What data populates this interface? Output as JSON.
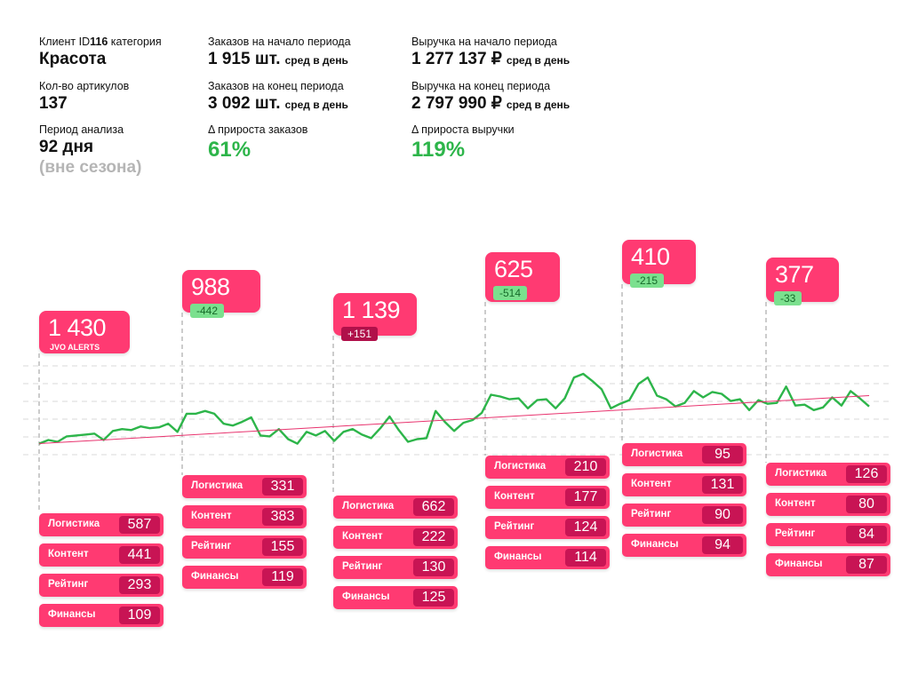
{
  "header": {
    "client": {
      "label_prefix": "Клиент ID",
      "id": "116",
      "label_suffix": " категория",
      "value": "Красота"
    },
    "articles": {
      "label": "Кол-во артикулов",
      "value": "137"
    },
    "period": {
      "label": "Период анализа",
      "value": "92 дня",
      "note": "(вне сезона)"
    },
    "orders_start": {
      "label": "Заказов на начало периода",
      "value": "1 915 шт.",
      "suffix": "сред в день"
    },
    "orders_end": {
      "label": "Заказов на конец периода",
      "value": "3 092 шт.",
      "suffix": "сред в день"
    },
    "orders_growth": {
      "label": "Δ прироста заказов",
      "value": "61%"
    },
    "revenue_start": {
      "label": "Выручка на начало периода",
      "value": "1 277 137 ₽",
      "suffix": "сред в день"
    },
    "revenue_end": {
      "label": "Выручка на конец периода",
      "value": "2 797 990 ₽",
      "suffix": "сред в день"
    },
    "revenue_growth": {
      "label": "Δ прироста выручки",
      "value": "119%"
    }
  },
  "colors": {
    "accent": "#ff3a72",
    "accent_dark": "#c81454",
    "line": "#2db54a",
    "trend": "#e8336e",
    "positive_text": "#2db54a"
  },
  "chart_data": {
    "type": "line",
    "series": [
      {
        "values": [
          0.22,
          0.26,
          0.24,
          0.3,
          0.31,
          0.32,
          0.33,
          0.26,
          0.36,
          0.38,
          0.37,
          0.41,
          0.39,
          0.4,
          0.44,
          0.35,
          0.55,
          0.55,
          0.58,
          0.55,
          0.44,
          0.42,
          0.46,
          0.51,
          0.31,
          0.3,
          0.38,
          0.27,
          0.22,
          0.35,
          0.31,
          0.36,
          0.25,
          0.35,
          0.38,
          0.32,
          0.28,
          0.39,
          0.52,
          0.37,
          0.24,
          0.27,
          0.28,
          0.58,
          0.46,
          0.36,
          0.45,
          0.48,
          0.56,
          0.76,
          0.74,
          0.71,
          0.72,
          0.61,
          0.7,
          0.71,
          0.61,
          0.72,
          0.95,
          0.99,
          0.91,
          0.82,
          0.61,
          0.66,
          0.7,
          0.88,
          0.95,
          0.75,
          0.71,
          0.63,
          0.67,
          0.8,
          0.73,
          0.79,
          0.77,
          0.69,
          0.71,
          0.59,
          0.7,
          0.66,
          0.67,
          0.85,
          0.64,
          0.65,
          0.59,
          0.62,
          0.73,
          0.64,
          0.8,
          0.72,
          0.63
        ]
      },
      {
        "values": [
          0.22,
          0.75
        ]
      }
    ],
    "groups": [
      {
        "total": "1 430",
        "note": "JVO ALERTS",
        "delta": "",
        "metrics": [
          {
            "label": "Логистика",
            "value": "587"
          },
          {
            "label": "Контент",
            "value": "441"
          },
          {
            "label": "Рейтинг",
            "value": "293"
          },
          {
            "label": "Финансы",
            "value": "109"
          }
        ]
      },
      {
        "total": "988",
        "note": "",
        "delta": "-442",
        "metrics": [
          {
            "label": "Логистика",
            "value": "331"
          },
          {
            "label": "Контент",
            "value": "383"
          },
          {
            "label": "Рейтинг",
            "value": "155"
          },
          {
            "label": "Финансы",
            "value": "119"
          }
        ]
      },
      {
        "total": "1 139",
        "note": "",
        "delta": "+151",
        "metrics": [
          {
            "label": "Логистика",
            "value": "662"
          },
          {
            "label": "Контент",
            "value": "222"
          },
          {
            "label": "Рейтинг",
            "value": "130"
          },
          {
            "label": "Финансы",
            "value": "125"
          }
        ]
      },
      {
        "total": "625",
        "note": "",
        "delta": "-514",
        "metrics": [
          {
            "label": "Логистика",
            "value": "210"
          },
          {
            "label": "Контент",
            "value": "177"
          },
          {
            "label": "Рейтинг",
            "value": "124"
          },
          {
            "label": "Финансы",
            "value": "114"
          }
        ]
      },
      {
        "total": "410",
        "note": "",
        "delta": "-215",
        "metrics": [
          {
            "label": "Логистика",
            "value": "95"
          },
          {
            "label": "Контент",
            "value": "131"
          },
          {
            "label": "Рейтинг",
            "value": "90"
          },
          {
            "label": "Финансы",
            "value": "94"
          }
        ]
      },
      {
        "total": "377",
        "note": "",
        "delta": "-33",
        "metrics": [
          {
            "label": "Логистика",
            "value": "126"
          },
          {
            "label": "Контент",
            "value": "80"
          },
          {
            "label": "Рейтинг",
            "value": "84"
          },
          {
            "label": "Финансы",
            "value": "87"
          }
        ]
      }
    ]
  }
}
